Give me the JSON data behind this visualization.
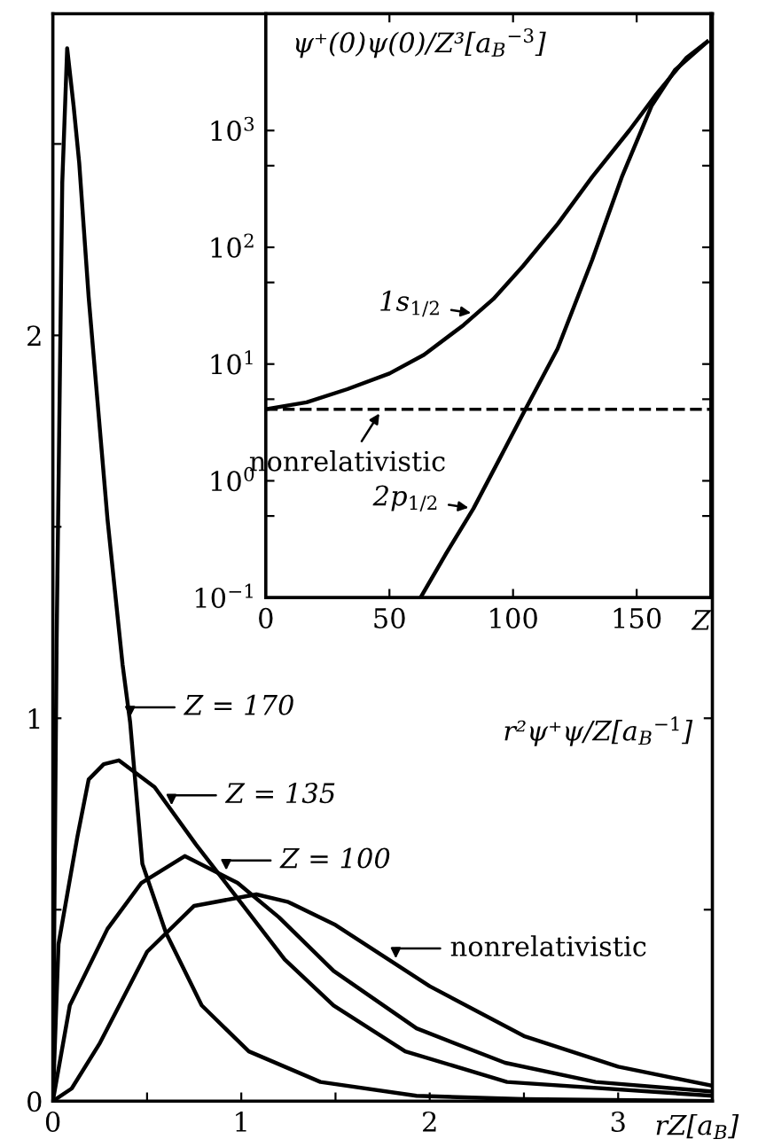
{
  "chart_data": [
    {
      "type": "line",
      "xlabel": "rZ[a$_{B}$]",
      "ylabel": "r²ψ⁺ψ/Z[a$_{B}$$^{−1}$]",
      "xlim": [
        0,
        3.5
      ],
      "ylim": [
        0,
        2.84
      ],
      "xticks": [
        0,
        {
          "value": 0.5,
          "label": null
        },
        1,
        {
          "value": 1.5,
          "label": null
        },
        2,
        {
          "value": 2.5,
          "label": null
        },
        3
      ],
      "yticks": [
        0,
        {
          "value": 0.5,
          "label": null
        },
        1,
        {
          "value": 1.5,
          "label": null
        },
        2,
        {
          "value": 2.5,
          "label": null
        }
      ],
      "grid": false,
      "legend": false,
      "marker": "none",
      "line_style": "solid",
      "series": [
        {
          "color": "#000000",
          "x": [
            0,
            0.02,
            0.05,
            0.076,
            0.11,
            0.14,
            0.19,
            0.29,
            0.37,
            0.41,
            0.475,
            0.6,
            0.79,
            1.04,
            1.42,
            1.93,
            2.5,
            3.5
          ],
          "values": [
            0,
            1.2,
            2.4,
            2.75,
            2.6,
            2.45,
            2.1,
            1.52,
            1.14,
            0.99,
            0.62,
            0.44,
            0.25,
            0.13,
            0.05,
            0.014,
            0.005,
            0
          ]
        },
        {
          "color": "#000000",
          "x": [
            0,
            0.03,
            0.13,
            0.19,
            0.27,
            0.35,
            0.54,
            0.76,
            0.98,
            1.23,
            1.49,
            1.87,
            2.41,
            3.5
          ],
          "values": [
            0,
            0.41,
            0.69,
            0.84,
            0.88,
            0.89,
            0.82,
            0.67,
            0.53,
            0.37,
            0.25,
            0.13,
            0.05,
            0.014
          ]
        },
        {
          "color": "#000000",
          "x": [
            0,
            0.09,
            0.29,
            0.47,
            0.7,
            0.98,
            1.2,
            1.49,
            1.93,
            2.4,
            2.88,
            3.5
          ],
          "values": [
            0,
            0.25,
            0.45,
            0.57,
            0.64,
            0.57,
            0.48,
            0.34,
            0.19,
            0.1,
            0.05,
            0.025
          ]
        },
        {
          "color": "#000000",
          "x": [
            0,
            0.1,
            0.25,
            0.5,
            0.75,
            1.08,
            1.25,
            1.5,
            1.75,
            2,
            2.5,
            3,
            3.5
          ],
          "values": [
            0,
            0.033,
            0.152,
            0.39,
            0.51,
            0.54,
            0.52,
            0.46,
            0.38,
            0.3,
            0.17,
            0.09,
            0.04
          ]
        }
      ],
      "annotations": [
        {
          "text": "Z = 170",
          "x": 0.41,
          "y": 0.99
        },
        {
          "text": "Z = 135",
          "x": 0.63,
          "y": 0.76
        },
        {
          "text": "Z = 100",
          "x": 0.92,
          "y": 0.59
        },
        {
          "text": "nonrelativistic",
          "x": 1.82,
          "y": 0.36
        }
      ]
    },
    {
      "type": "line",
      "xlabel": "Z",
      "title": "ψ⁺(0)ψ(0)/Z³[a$_{B}$$^{−3}$]",
      "log": "y",
      "xlim": [
        0,
        180
      ],
      "ylim": [
        0.1,
        10000
      ],
      "xticks": [
        0,
        50,
        100,
        150
      ],
      "yticks": [
        {
          "value": 0.1,
          "label": "10$^{−1}$"
        },
        {
          "value": 0.5,
          "label": null
        },
        {
          "value": 1,
          "label": "10$^{0}$"
        },
        {
          "value": 5,
          "label": null
        },
        {
          "value": 10,
          "label": "10$^{1}$"
        },
        {
          "value": 50,
          "label": null
        },
        {
          "value": 100,
          "label": "10$^{2}$"
        },
        {
          "value": 500,
          "label": null
        },
        {
          "value": 1000,
          "label": "10$^{3}$"
        }
      ],
      "grid": false,
      "legend": false,
      "marker": "none",
      "line_style": "solid",
      "series": [
        {
          "color": "#000000",
          "x": [
            0,
            16.5,
            33,
            50,
            64,
            80,
            92,
            104,
            118,
            132,
            147,
            158,
            170,
            178.5
          ],
          "values": [
            4.1,
            4.7,
            6.1,
            8.3,
            12,
            21.6,
            36,
            69,
            158,
            400,
            1000,
            2050,
            4170,
            5750
          ]
        },
        {
          "color": "#000000",
          "x": [
            62.6,
            73,
            84,
            94.6,
            105,
            118,
            132,
            144,
            156,
            165.5,
            178.5
          ],
          "values": [
            0.1,
            0.24,
            0.58,
            1.55,
            4.1,
            13.5,
            78,
            400,
            1620,
            3300,
            5750
          ]
        }
      ],
      "ref_lines": [
        {
          "axis": "y",
          "value": 4.1,
          "line_style": "dashed",
          "color": "#000000"
        }
      ],
      "annotations": [
        {
          "text": "nonrelativistic",
          "x": 47,
          "y": 4.1
        },
        {
          "text": "1s$_{1/2}$",
          "x": 85,
          "y": 27
        },
        {
          "text": "2p$_{1/2}$",
          "x": 84,
          "y": 0.58
        }
      ]
    }
  ]
}
